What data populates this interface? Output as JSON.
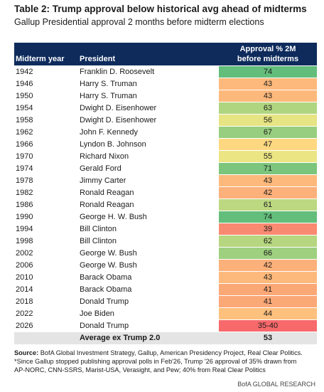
{
  "header": {
    "title": "Table 2: Trump approval below historical avg ahead of midterms",
    "subtitle": "Gallup Presidential approval 2 months before midterm elections"
  },
  "table": {
    "columns": [
      "Midterm year",
      "President",
      [
        "Approval % 2M",
        "before midterms"
      ]
    ],
    "rows": [
      {
        "year": "1942",
        "president": "Franklin D. Roosevelt",
        "approval": "74",
        "color": "#63be7b"
      },
      {
        "year": "1946",
        "president": "Harry S. Truman",
        "approval": "43",
        "color": "#fdb97b"
      },
      {
        "year": "1950",
        "president": "Harry S. Truman",
        "approval": "43",
        "color": "#fdb97b"
      },
      {
        "year": "1954",
        "president": "Dwight D. Eisenhower",
        "approval": "63",
        "color": "#b0d580"
      },
      {
        "year": "1958",
        "president": "Dwight D. Eisenhower",
        "approval": "56",
        "color": "#e6e483"
      },
      {
        "year": "1962",
        "president": "John F. Kennedy",
        "approval": "67",
        "color": "#98ce7f"
      },
      {
        "year": "1966",
        "president": "Lyndon B. Johnson",
        "approval": "47",
        "color": "#fed880"
      },
      {
        "year": "1970",
        "president": "Richard Nixon",
        "approval": "55",
        "color": "#ece584"
      },
      {
        "year": "1974",
        "president": "Gerald Ford",
        "approval": "71",
        "color": "#7bc57d"
      },
      {
        "year": "1978",
        "president": "Jimmy Carter",
        "approval": "43",
        "color": "#fdb97b"
      },
      {
        "year": "1982",
        "president": "Ronald Reagan",
        "approval": "42",
        "color": "#fcb07a"
      },
      {
        "year": "1986",
        "president": "Ronald Reagan",
        "approval": "61",
        "color": "#bcd881"
      },
      {
        "year": "1990",
        "president": "George H. W. Bush",
        "approval": "74",
        "color": "#63be7b"
      },
      {
        "year": "1994",
        "president": "Bill Clinton",
        "approval": "39",
        "color": "#f98a71"
      },
      {
        "year": "1998",
        "president": "Bill Clinton",
        "approval": "62",
        "color": "#b6d680"
      },
      {
        "year": "2002",
        "president": "George W. Bush",
        "approval": "66",
        "color": "#9ed07f"
      },
      {
        "year": "2006",
        "president": "George W. Bush",
        "approval": "42",
        "color": "#fcb07a"
      },
      {
        "year": "2010",
        "president": "Barack Obama",
        "approval": "43",
        "color": "#fdb97b"
      },
      {
        "year": "2014",
        "president": "Barack Obama",
        "approval": "41",
        "color": "#fba877"
      },
      {
        "year": "2018",
        "president": "Donald Trump",
        "approval": "41",
        "color": "#fba877"
      },
      {
        "year": "2022",
        "president": "Joe Biden",
        "approval": "44",
        "color": "#fdc07d"
      },
      {
        "year": "2026",
        "president": "Donald Trump",
        "approval": "35-40",
        "color": "#f8696b"
      }
    ],
    "average": {
      "label": "Average ex Trump 2.0",
      "value": "53"
    }
  },
  "source": {
    "label": "Source:",
    "text": "BofA Global Investment Strategy, Gallup, American Presidency Project, Real Clear Politics.",
    "notes": [
      "*Since Gallup stopped publishing approval polls in Feb'26, Trump '26 approval of 35% drawn from",
      "AP-NORC, CNN-SSRS, Marist-USA, Verasight, and Pew; 40% from Real Clear Politics"
    ]
  },
  "footer": "BofA GLOBAL RESEARCH"
}
